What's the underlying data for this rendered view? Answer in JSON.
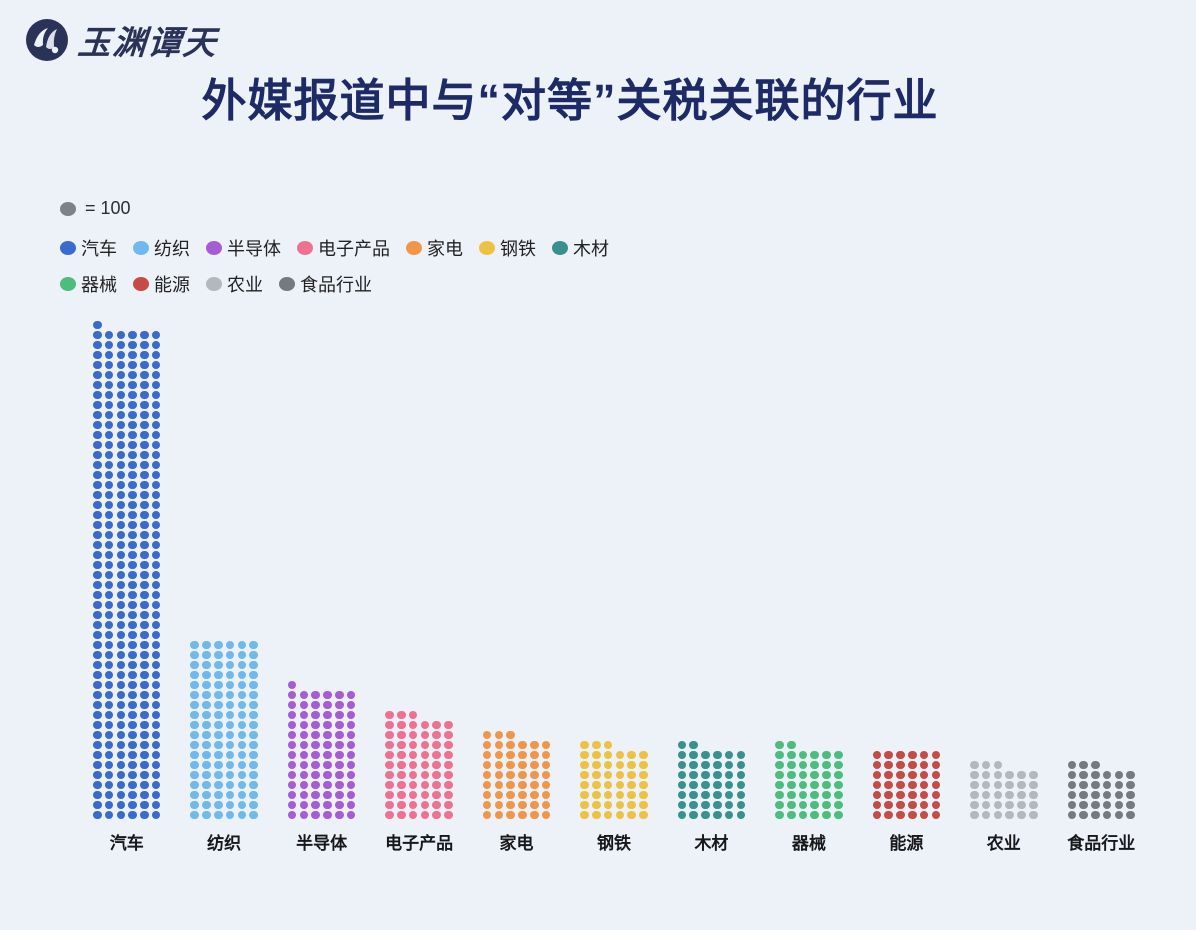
{
  "brand": {
    "logo_text": "玉渊谭天"
  },
  "title": "外媒报道中与“对等”关税关联的行业",
  "legend": {
    "unit_dot_color": "#7e8185",
    "unit_label": "= 100",
    "row_break": 7
  },
  "chart_data": {
    "type": "pictogram-bar",
    "title": "外媒报道中与“对等”关税关联的行业",
    "unit_per_dot": 100,
    "dots_per_row": 6,
    "legend_position": "top-left",
    "background_color": "#edf1f8",
    "categories": [
      "汽车",
      "纺织",
      "半导体",
      "电子产品",
      "家电",
      "钢铁",
      "木材",
      "器械",
      "能源",
      "农业",
      "食品行业"
    ],
    "colors": [
      "#3a6ace",
      "#6fb9ee",
      "#a55cd6",
      "#ee7290",
      "#f0964a",
      "#edc244",
      "#38918d",
      "#4dbd7d",
      "#c44b46",
      "#b4b8be",
      "#76797d"
    ],
    "dot_counts": [
      295,
      108,
      79,
      63,
      51,
      45,
      44,
      44,
      42,
      33,
      33
    ],
    "values": [
      29500,
      10800,
      7900,
      6300,
      5100,
      4500,
      4400,
      4400,
      4200,
      3300,
      3300
    ]
  }
}
